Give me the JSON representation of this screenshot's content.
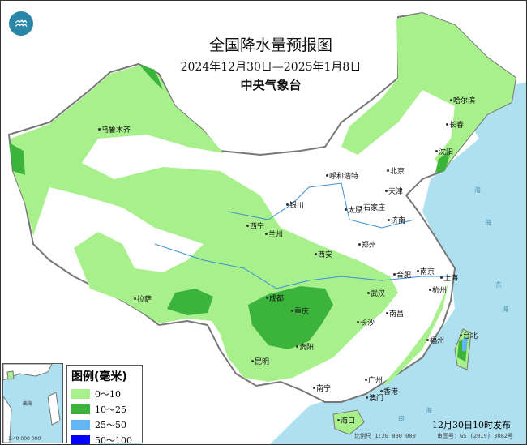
{
  "header": {
    "title": "全国降水量预报图",
    "date_range": "2024年12月30日—2025年1月8日",
    "agency": "中央气象台",
    "logo_icon": "cma-logo"
  },
  "legend": {
    "title": "图例(毫米)",
    "items": [
      {
        "label": "0～10",
        "color": "#a8f08c"
      },
      {
        "label": "10～25",
        "color": "#3cb43c"
      },
      {
        "label": "25～50",
        "color": "#62b6fa"
      },
      {
        "label": "50～100",
        "color": "#0000fe"
      }
    ]
  },
  "cities": [
    "乌鲁木齐",
    "哈尔滨",
    "长春",
    "沈阳",
    "北京",
    "天津",
    "呼和浩特",
    "石家庄",
    "太原",
    "济南",
    "银川",
    "西宁",
    "兰州",
    "郑州",
    "西安",
    "合肥",
    "南京",
    "上海",
    "武汉",
    "杭州",
    "成都",
    "重庆",
    "拉萨",
    "长沙",
    "南昌",
    "贵阳",
    "昆明",
    "福州",
    "台北",
    "南宁",
    "广州",
    "香港",
    "澳门",
    "海口"
  ],
  "seas": [
    "海",
    "海",
    "东",
    "海",
    "南",
    "海"
  ],
  "inset": {
    "sea": "南海",
    "scale": "1:40 000 000"
  },
  "footer": {
    "published": "12月30日10时发布",
    "scale": "比例尺 1:20 000 000",
    "approval": "审图号：GS (2019) 3082号"
  },
  "colors": {
    "sea": "#aee0f0",
    "land": "#ffffff",
    "border": "#777777"
  }
}
